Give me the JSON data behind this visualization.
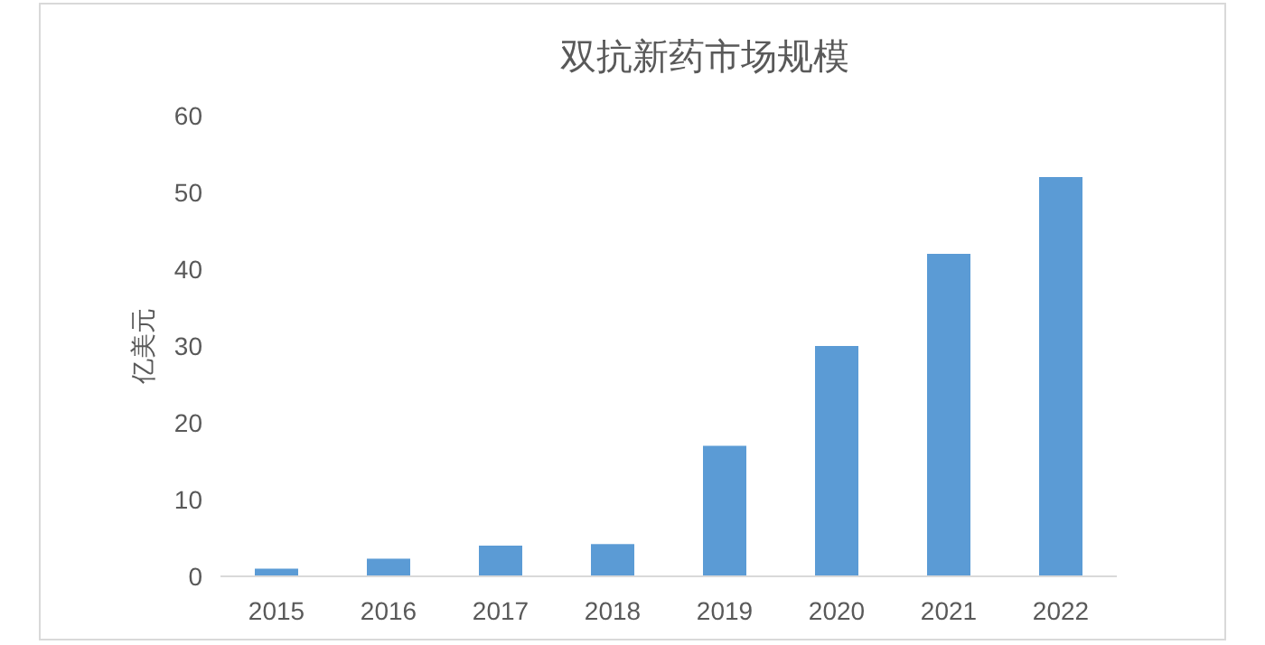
{
  "chart_data": {
    "type": "bar",
    "title": "双抗新药市场规模",
    "ylabel": "亿美元",
    "categories": [
      "2015",
      "2016",
      "2017",
      "2018",
      "2019",
      "2020",
      "2021",
      "2022"
    ],
    "values": [
      1,
      2.3,
      4,
      4.2,
      17,
      30,
      42,
      52
    ],
    "color": "#5b9bd5",
    "ylim": [
      0,
      60
    ],
    "yticks": [
      0,
      10,
      20,
      30,
      40,
      50,
      60
    ],
    "grid": false
  }
}
